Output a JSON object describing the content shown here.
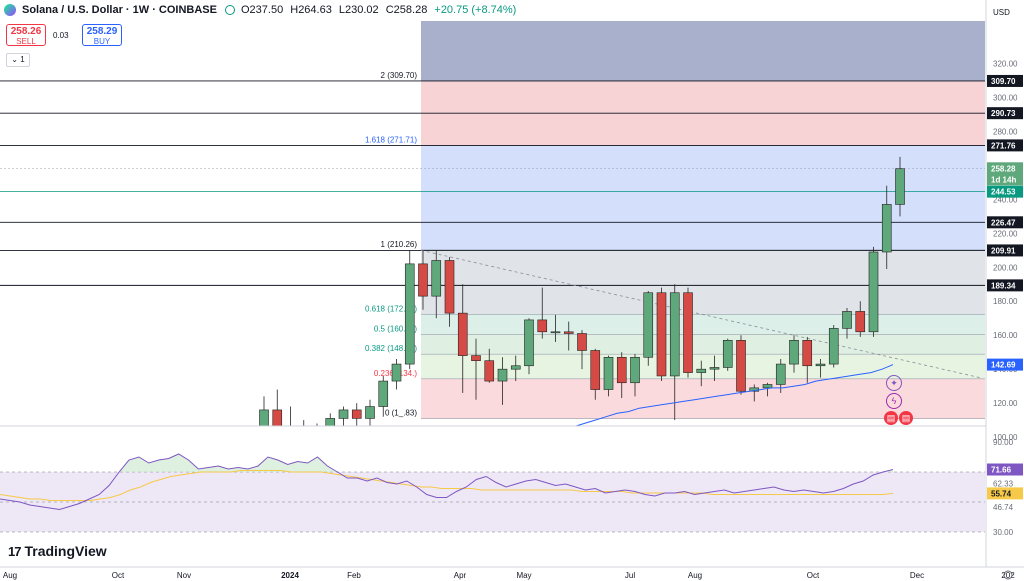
{
  "header": {
    "symbol": "Solana / U.S. Dollar · 1W · COINBASE",
    "open": "O237.50",
    "high": "H264.63",
    "low": "L230.02",
    "close": "C258.28",
    "change": "+20.75 (+8.74%)"
  },
  "trade": {
    "sell_price": "258.26",
    "sell_label": "SELL",
    "spread": "0.03",
    "buy_price": "258.29",
    "buy_label": "BUY",
    "collapse_label": "1"
  },
  "currency": "USD",
  "brand": "TradingView",
  "colors": {
    "up": "#089981",
    "down": "#f23645",
    "ma": "#2962ff",
    "rsi": "#7e57c2",
    "rsi_ma": "#f7c948"
  },
  "chart_data": {
    "type": "candlestick",
    "price_axis_ticks": [
      "320.00",
      "300.00",
      "280.00",
      "260.00",
      "240.00",
      "220.00",
      "200.00",
      "180.00",
      "160.00",
      "140.00",
      "120.00",
      "100.00"
    ],
    "time_axis_ticks": [
      "Aug",
      "Oct",
      "Nov",
      "2024",
      "Feb",
      "Apr",
      "May",
      "Jul",
      "Aug",
      "Oct",
      "Dec",
      "202"
    ],
    "price_badges": [
      {
        "value": "309.70",
        "kind": "line"
      },
      {
        "value": "290.73",
        "kind": "line"
      },
      {
        "value": "271.76",
        "kind": "line"
      },
      {
        "value": "258.28",
        "kind": "last"
      },
      {
        "value": "1d 14h",
        "kind": "countdown"
      },
      {
        "value": "244.53",
        "kind": "green"
      },
      {
        "value": "226.47",
        "kind": "line"
      },
      {
        "value": "209.91",
        "kind": "line"
      },
      {
        "value": "189.34",
        "kind": "line"
      },
      {
        "value": "142.69",
        "kind": "ma"
      }
    ],
    "fib_levels": [
      {
        "ratio": "2",
        "label": "2 (309.70)",
        "value": 309.7
      },
      {
        "ratio": "1.618",
        "label": "1.618 (271.71)",
        "value": 271.71
      },
      {
        "ratio": "1",
        "label": "1 (210.26)",
        "value": 210.26
      },
      {
        "ratio": "0.618",
        "label": "0.618 (172.28)",
        "value": 172.28
      },
      {
        "ratio": "0.5",
        "label": "0.5 (160.55)",
        "value": 160.55
      },
      {
        "ratio": "0.382",
        "label": "0.382 (148.82)",
        "value": 148.82
      },
      {
        "ratio": "0.236",
        "label": "0.236 (134.)",
        "value": 134.3
      },
      {
        "ratio": "0",
        "label": "0 (1_.83)",
        "value": 110.83
      }
    ],
    "horizontal_lines": [
      309.7,
      290.73,
      271.76,
      226.47,
      209.91,
      189.34
    ],
    "green_line": 244.53,
    "candles": [
      {
        "o": 102,
        "h": 124,
        "l": 96,
        "c": 116
      },
      {
        "o": 116,
        "h": 128,
        "l": 100,
        "c": 104
      },
      {
        "o": 104,
        "h": 118,
        "l": 96,
        "c": 100
      },
      {
        "o": 100,
        "h": 110,
        "l": 94,
        "c": 99
      },
      {
        "o": 99,
        "h": 108,
        "l": 92,
        "c": 101
      },
      {
        "o": 101,
        "h": 114,
        "l": 98,
        "c": 111
      },
      {
        "o": 111,
        "h": 118,
        "l": 102,
        "c": 116
      },
      {
        "o": 116,
        "h": 120,
        "l": 104,
        "c": 111
      },
      {
        "o": 111,
        "h": 122,
        "l": 105,
        "c": 118
      },
      {
        "o": 118,
        "h": 136,
        "l": 112,
        "c": 133
      },
      {
        "o": 133,
        "h": 146,
        "l": 128,
        "c": 143
      },
      {
        "o": 143,
        "h": 210,
        "l": 140,
        "c": 202
      },
      {
        "o": 202,
        "h": 210,
        "l": 175,
        "c": 183
      },
      {
        "o": 183,
        "h": 210,
        "l": 170,
        "c": 204
      },
      {
        "o": 204,
        "h": 206,
        "l": 165,
        "c": 173
      },
      {
        "o": 173,
        "h": 190,
        "l": 126,
        "c": 148
      },
      {
        "o": 148,
        "h": 158,
        "l": 122,
        "c": 145
      },
      {
        "o": 145,
        "h": 152,
        "l": 132,
        "c": 133
      },
      {
        "o": 133,
        "h": 147,
        "l": 119,
        "c": 140
      },
      {
        "o": 140,
        "h": 148,
        "l": 133,
        "c": 142
      },
      {
        "o": 142,
        "h": 170,
        "l": 137,
        "c": 169
      },
      {
        "o": 169,
        "h": 188,
        "l": 158,
        "c": 162
      },
      {
        "o": 162,
        "h": 172,
        "l": 156,
        "c": 162
      },
      {
        "o": 162,
        "h": 168,
        "l": 151,
        "c": 161
      },
      {
        "o": 161,
        "h": 163,
        "l": 140,
        "c": 151
      },
      {
        "o": 151,
        "h": 152,
        "l": 122,
        "c": 128
      },
      {
        "o": 128,
        "h": 148,
        "l": 124,
        "c": 147
      },
      {
        "o": 147,
        "h": 150,
        "l": 123,
        "c": 132
      },
      {
        "o": 132,
        "h": 149,
        "l": 124,
        "c": 147
      },
      {
        "o": 147,
        "h": 186,
        "l": 142,
        "c": 185
      },
      {
        "o": 185,
        "h": 188,
        "l": 133,
        "c": 136
      },
      {
        "o": 136,
        "h": 190,
        "l": 110,
        "c": 185
      },
      {
        "o": 185,
        "h": 188,
        "l": 135,
        "c": 138
      },
      {
        "o": 138,
        "h": 145,
        "l": 130,
        "c": 140
      },
      {
        "o": 140,
        "h": 148,
        "l": 133,
        "c": 141
      },
      {
        "o": 141,
        "h": 158,
        "l": 139,
        "c": 157
      },
      {
        "o": 157,
        "h": 160,
        "l": 125,
        "c": 127
      },
      {
        "o": 127,
        "h": 131,
        "l": 121,
        "c": 129
      },
      {
        "o": 129,
        "h": 132,
        "l": 124,
        "c": 131
      },
      {
        "o": 131,
        "h": 146,
        "l": 126,
        "c": 143
      },
      {
        "o": 143,
        "h": 160,
        "l": 138,
        "c": 157
      },
      {
        "o": 157,
        "h": 159,
        "l": 132,
        "c": 142
      },
      {
        "o": 142,
        "h": 146,
        "l": 135,
        "c": 143
      },
      {
        "o": 143,
        "h": 166,
        "l": 141,
        "c": 164
      },
      {
        "o": 164,
        "h": 176,
        "l": 158,
        "c": 174
      },
      {
        "o": 174,
        "h": 180,
        "l": 159,
        "c": 162
      },
      {
        "o": 162,
        "h": 212,
        "l": 159,
        "c": 209
      },
      {
        "o": 209,
        "h": 248,
        "l": 199,
        "c": 237
      },
      {
        "o": 237,
        "h": 265,
        "l": 230,
        "c": 258
      }
    ],
    "ma_line": [
      100,
      102,
      104,
      106,
      108,
      110,
      112,
      114,
      115,
      117,
      118,
      119,
      120,
      121,
      122,
      123,
      124,
      125,
      126,
      127,
      128,
      129,
      129,
      130,
      131,
      133,
      134,
      135,
      136,
      137,
      138,
      140,
      142.69
    ],
    "rsi": {
      "axis_ticks": [
        "90.00",
        "71.66",
        "62.33",
        "55.74",
        "46.74",
        "30.00"
      ],
      "current": "71.66",
      "ma_current": "55.74",
      "rsi_ma_mid": "62.33",
      "upper_band": 70,
      "lower_band": 30,
      "mid_band": 50,
      "rsi_values": [
        52,
        51,
        50,
        48,
        47,
        46,
        45,
        47,
        49,
        52,
        55,
        61,
        70,
        78,
        80,
        76,
        78,
        79,
        82,
        78,
        72,
        73,
        74,
        72,
        73,
        72,
        74,
        80,
        78,
        75,
        77,
        76,
        80,
        74,
        70,
        66,
        66,
        64,
        66,
        63,
        62,
        64,
        60,
        55,
        53,
        53,
        57,
        60,
        65,
        67,
        63,
        60,
        62,
        64,
        65,
        63,
        61,
        62,
        60,
        58,
        59,
        56,
        57,
        58,
        57,
        55,
        54,
        56,
        56,
        57,
        55,
        56,
        57,
        58,
        56,
        57,
        58,
        59,
        60,
        58,
        57,
        58,
        57,
        56,
        57,
        59,
        62,
        64,
        68,
        70,
        71.66
      ],
      "ma_values": [
        55,
        54,
        53,
        52,
        52,
        51,
        51,
        51,
        51,
        51,
        52,
        53,
        55,
        58,
        60,
        63,
        65,
        67,
        68,
        69,
        70,
        70,
        70,
        70,
        71,
        71,
        71,
        71,
        71,
        70,
        70,
        70,
        70,
        69,
        68,
        67,
        66,
        65,
        64,
        63,
        62,
        61,
        60,
        60,
        59,
        59,
        59,
        59,
        58,
        58,
        58,
        58,
        58,
        58,
        58,
        58,
        58,
        58,
        57,
        57,
        57,
        57,
        57,
        56,
        56,
        56,
        56,
        56,
        56,
        56,
        56,
        55,
        55,
        55,
        55,
        55,
        55,
        55,
        55,
        55,
        55,
        55,
        55,
        55,
        55,
        55,
        55,
        55,
        55,
        55.74
      ]
    },
    "annotations": [
      "TradingView"
    ]
  }
}
